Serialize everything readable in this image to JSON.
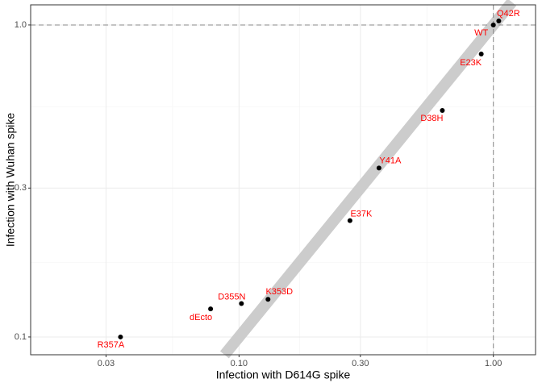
{
  "chart_data": {
    "type": "scatter",
    "x_label": "Infection with D614G spike",
    "y_label": "Infection with Wuhan spike",
    "log_x": true,
    "log_y": true,
    "grid": true,
    "color": "#000000",
    "label_color": "#ff0000",
    "labels": [
      "R357A",
      "dEcto",
      "D355N",
      "K353D",
      "E37K",
      "Y41A",
      "D38H",
      "E23K",
      "WT",
      "Q42R"
    ],
    "x": [
      0.0342,
      0.0773,
      0.1022,
      0.13,
      0.273,
      0.355,
      0.63,
      0.896,
      1.0,
      1.05
    ],
    "values": [
      0.1,
      0.123,
      0.128,
      0.132,
      0.236,
      0.348,
      0.532,
      0.807,
      1.0,
      1.03
    ],
    "xlim": [
      0.01516,
      1.465
    ],
    "ylim": [
      0.0877,
      1.16
    ],
    "xticks": [
      {
        "value": 0.03,
        "label": "0.03"
      },
      {
        "value": 0.1,
        "label": "0.10"
      },
      {
        "value": 0.3,
        "label": "0.30"
      },
      {
        "value": 1,
        "label": "1.00"
      }
    ],
    "yticks": [
      {
        "value": 0.1,
        "label": "0.1"
      },
      {
        "value": 0.3,
        "label": "0.3"
      },
      {
        "value": 1,
        "label": "1.0"
      }
    ],
    "hline": 1,
    "vline": 1,
    "identity_line": true
  }
}
